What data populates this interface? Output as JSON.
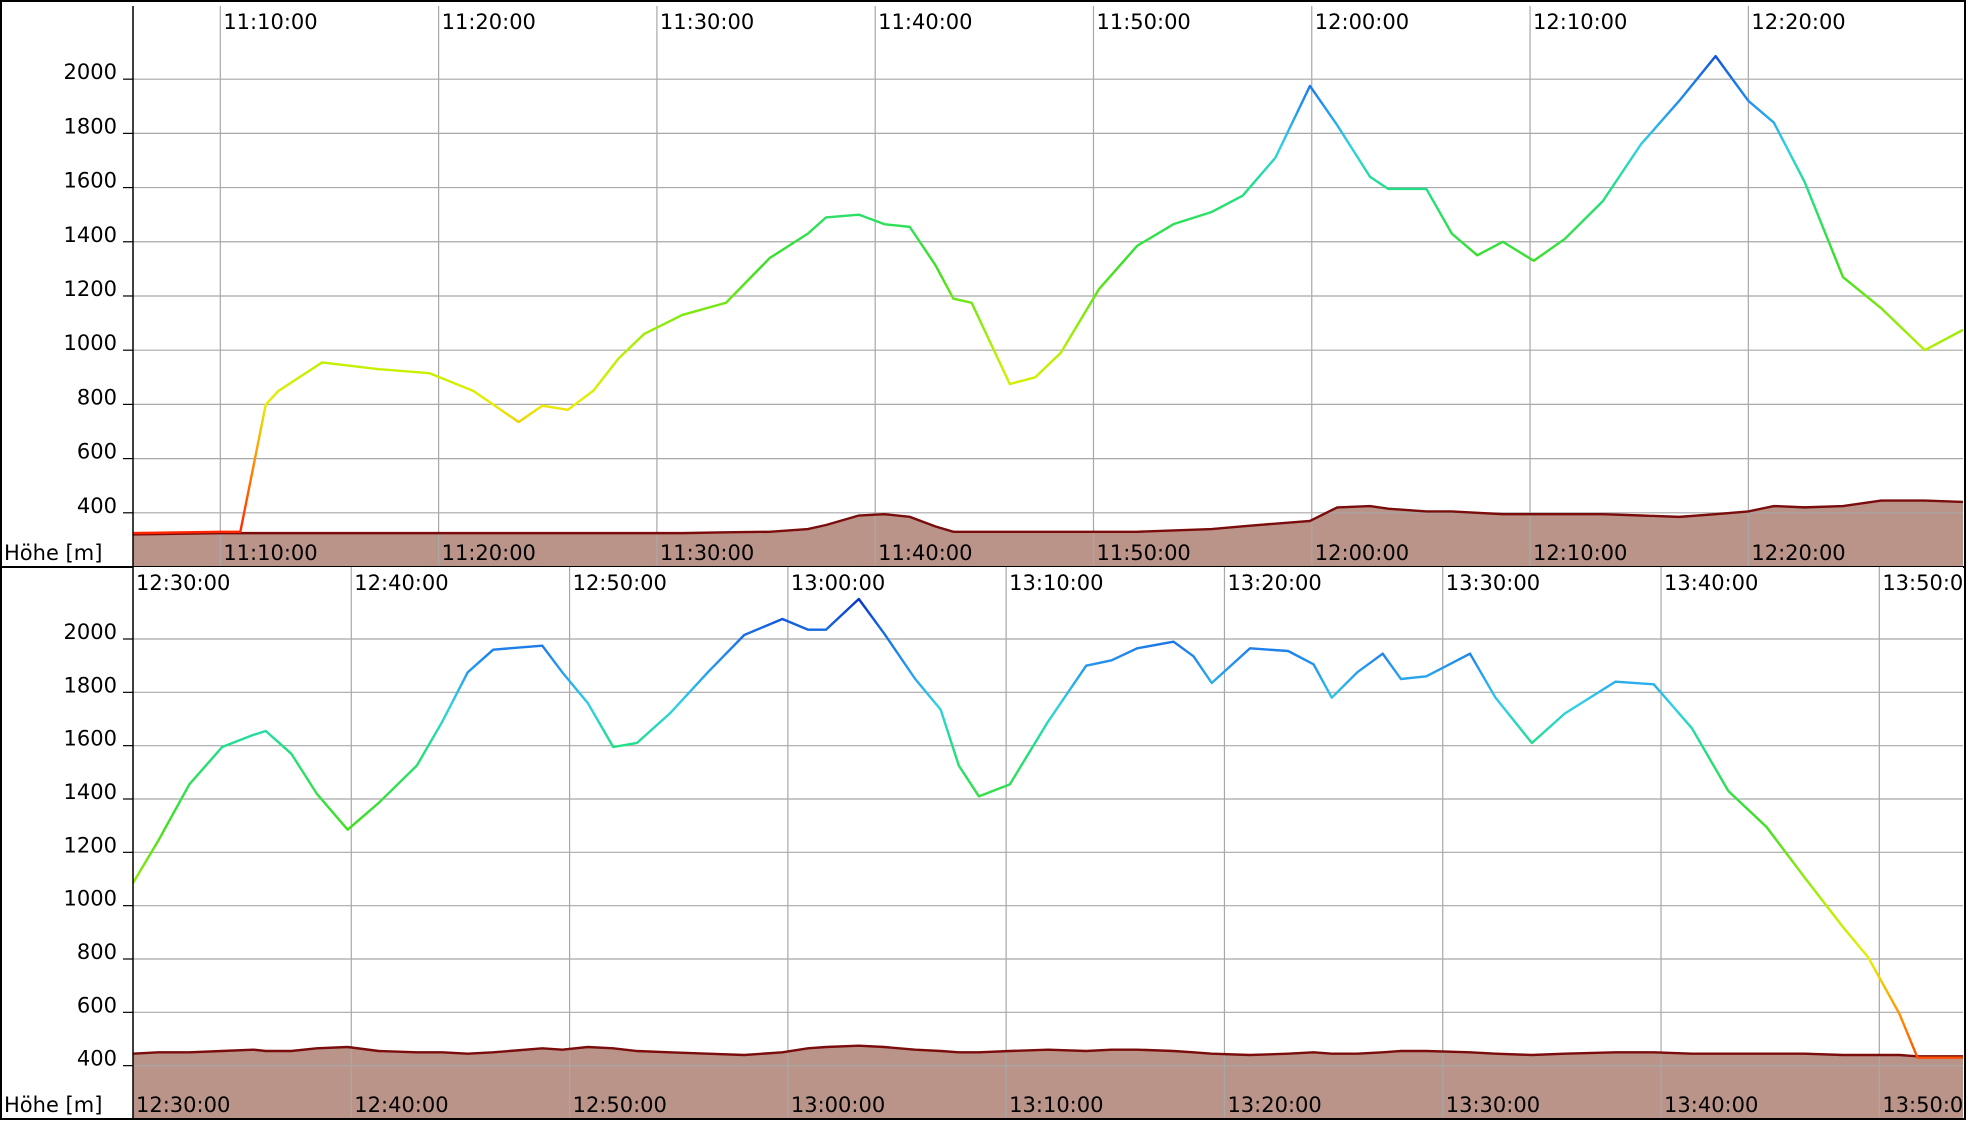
{
  "chart_data": [
    {
      "type": "line",
      "y_label": "Höhe [m]",
      "xlim": [
        "11:06:00",
        "12:29:50"
      ],
      "xticks": [
        "11:10:00",
        "11:20:00",
        "11:30:00",
        "11:40:00",
        "11:50:00",
        "12:00:00",
        "12:10:00",
        "12:20:00"
      ],
      "ylim": [
        200,
        2270
      ],
      "yticks": [
        400,
        600,
        800,
        1000,
        1200,
        1400,
        1600,
        1800,
        2000
      ],
      "grid": true,
      "x": [
        "11:06:00",
        "11:10:00",
        "11:10:55",
        "11:12:05",
        "11:12:40",
        "11:14:40",
        "11:17:15",
        "11:19:35",
        "11:21:35",
        "11:23:40",
        "11:24:45",
        "11:25:55",
        "11:27:05",
        "11:28:15",
        "11:29:25",
        "11:31:10",
        "11:33:10",
        "11:35:10",
        "11:36:55",
        "11:37:45",
        "11:39:15",
        "11:40:25",
        "11:41:35",
        "11:42:45",
        "11:43:35",
        "11:44:25",
        "11:46:10",
        "11:47:20",
        "11:48:30",
        "11:50:15",
        "11:52:00",
        "11:53:40",
        "11:55:25",
        "11:56:50",
        "11:58:20",
        "11:59:55",
        "12:01:10",
        "12:02:40",
        "12:03:30",
        "12:05:15",
        "12:06:25",
        "12:07:35",
        "12:08:45",
        "12:10:10",
        "12:11:35",
        "12:13:20",
        "12:15:05",
        "12:16:50",
        "12:18:30",
        "12:20:00",
        "12:21:10",
        "12:22:35",
        "12:24:20",
        "12:26:05",
        "12:28:05",
        "12:29:50"
      ],
      "series": [
        {
          "style": "gradient",
          "values": [
            325,
            330,
            330,
            800,
            850,
            955,
            930,
            915,
            850,
            735,
            795,
            780,
            850,
            970,
            1060,
            1130,
            1175,
            1340,
            1430,
            1490,
            1500,
            1465,
            1455,
            1315,
            1190,
            1175,
            875,
            900,
            990,
            1225,
            1385,
            1465,
            1510,
            1570,
            1710,
            1975,
            1830,
            1640,
            1595,
            1595,
            1430,
            1350,
            1400,
            1330,
            1410,
            1550,
            1760,
            1920,
            2085,
            1920,
            1840,
            1620,
            1270,
            1155,
            1000,
            1075
          ]
        },
        {
          "style": "area",
          "color": "#7a0c0c",
          "fill": "#bb9489",
          "values": [
            320,
            325,
            325,
            325,
            325,
            325,
            325,
            325,
            325,
            325,
            325,
            325,
            325,
            325,
            325,
            325,
            328,
            330,
            340,
            355,
            390,
            395,
            385,
            350,
            330,
            330,
            330,
            330,
            330,
            330,
            330,
            335,
            340,
            350,
            360,
            370,
            420,
            425,
            415,
            405,
            405,
            400,
            395,
            395,
            395,
            395,
            390,
            385,
            395,
            405,
            425,
            420,
            425,
            445,
            445,
            440
          ]
        }
      ],
      "color_scale": [
        {
          "value": 300,
          "color": "#ff1a00"
        },
        {
          "value": 600,
          "color": "#ff9400"
        },
        {
          "value": 800,
          "color": "#e8ee00"
        },
        {
          "value": 1000,
          "color": "#b4f000"
        },
        {
          "value": 1300,
          "color": "#3ee020"
        },
        {
          "value": 1600,
          "color": "#20e088"
        },
        {
          "value": 1750,
          "color": "#30d0e6"
        },
        {
          "value": 1900,
          "color": "#2494f0"
        },
        {
          "value": 2050,
          "color": "#1462e0"
        },
        {
          "value": 2200,
          "color": "#0018c0"
        }
      ]
    },
    {
      "type": "line",
      "y_label": "Höhe [m]",
      "xlim": [
        "12:30:00",
        "13:53:50"
      ],
      "xticks": [
        "12:30:00",
        "12:40:00",
        "12:50:00",
        "13:00:00",
        "13:10:00",
        "13:20:00",
        "13:30:00",
        "13:40:00",
        "13:50:00"
      ],
      "ylim": [
        200,
        2270
      ],
      "yticks": [
        400,
        600,
        800,
        1000,
        1200,
        1400,
        1600,
        1800,
        2000
      ],
      "grid": true,
      "x": [
        "12:30:00",
        "12:31:10",
        "12:32:35",
        "12:34:05",
        "12:35:30",
        "12:36:05",
        "12:37:15",
        "12:38:25",
        "12:39:50",
        "12:41:15",
        "12:43:00",
        "12:44:10",
        "12:45:20",
        "12:46:30",
        "12:48:45",
        "12:49:40",
        "12:50:50",
        "12:52:00",
        "12:53:05",
        "12:54:35",
        "12:56:20",
        "12:58:00",
        "12:59:45",
        "13:00:55",
        "13:01:45",
        "13:03:15",
        "13:04:25",
        "13:05:50",
        "13:07:00",
        "13:07:50",
        "13:08:45",
        "13:10:10",
        "13:11:55",
        "13:13:40",
        "13:14:50",
        "13:16:00",
        "13:17:40",
        "13:18:35",
        "13:19:25",
        "13:21:10",
        "13:22:55",
        "13:24:05",
        "13:24:55",
        "13:26:05",
        "13:27:15",
        "13:28:05",
        "13:29:15",
        "13:31:15",
        "13:32:25",
        "13:34:05",
        "13:35:35",
        "13:37:55",
        "13:39:40",
        "13:41:25",
        "13:43:05",
        "13:44:50",
        "13:46:35",
        "13:48:20",
        "13:49:30",
        "13:50:55",
        "13:51:45",
        "13:53:50"
      ],
      "series": [
        {
          "style": "gradient",
          "values": [
            1085,
            1245,
            1455,
            1595,
            1640,
            1655,
            1570,
            1420,
            1285,
            1385,
            1525,
            1690,
            1875,
            1960,
            1975,
            1875,
            1760,
            1595,
            1610,
            1720,
            1875,
            2015,
            2075,
            2035,
            2035,
            2150,
            2020,
            1850,
            1735,
            1525,
            1410,
            1455,
            1690,
            1900,
            1920,
            1965,
            1990,
            1935,
            1835,
            1965,
            1955,
            1905,
            1780,
            1875,
            1945,
            1850,
            1860,
            1945,
            1780,
            1610,
            1720,
            1840,
            1830,
            1665,
            1430,
            1295,
            1105,
            920,
            805,
            595,
            430,
            430
          ]
        },
        {
          "style": "area",
          "color": "#7a0c0c",
          "fill": "#bb9489",
          "values": [
            445,
            450,
            450,
            455,
            460,
            455,
            455,
            465,
            470,
            455,
            450,
            450,
            445,
            450,
            465,
            460,
            470,
            465,
            455,
            450,
            445,
            440,
            450,
            465,
            470,
            475,
            470,
            460,
            455,
            450,
            450,
            455,
            460,
            455,
            460,
            460,
            455,
            450,
            445,
            440,
            445,
            450,
            445,
            445,
            450,
            455,
            455,
            450,
            445,
            440,
            445,
            450,
            450,
            445,
            445,
            445,
            445,
            440,
            440,
            440,
            435,
            435
          ]
        }
      ],
      "color_scale": [
        {
          "value": 300,
          "color": "#ff1a00"
        },
        {
          "value": 600,
          "color": "#ff9400"
        },
        {
          "value": 800,
          "color": "#e8ee00"
        },
        {
          "value": 1000,
          "color": "#b4f000"
        },
        {
          "value": 1300,
          "color": "#3ee020"
        },
        {
          "value": 1600,
          "color": "#20e088"
        },
        {
          "value": 1750,
          "color": "#30d0e6"
        },
        {
          "value": 1900,
          "color": "#2494f0"
        },
        {
          "value": 2050,
          "color": "#1462e0"
        },
        {
          "value": 2200,
          "color": "#0018c0"
        }
      ]
    }
  ]
}
